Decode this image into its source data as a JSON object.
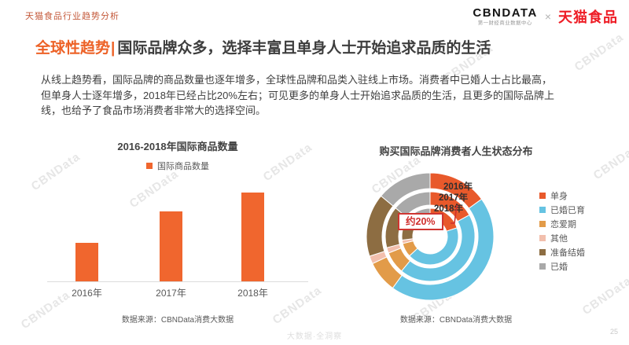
{
  "page": {
    "header_left": "天猫食品行业趋势分析",
    "logo": {
      "brand": "CBNDATA",
      "brand_sub": "第一财经商业数据中心",
      "separator": "×",
      "partner": "天猫食品"
    },
    "title": {
      "highlight": "全球性趋势",
      "separator": "|",
      "rest": "国际品牌众多，选择丰富且单身人士开始追求品质的生活"
    },
    "intro_lines": [
      "从线上趋势看，国际品牌的商品数量也逐年增多，全球性品牌和品类入驻线上市场。消费者中已婚人士占比最高，",
      "但单身人士逐年增多，2018年已经占比20%左右；可见更多的单身人士开始追求品质的生活，且更多的国际品牌上",
      "线，也给予了食品市场消费者非常大的选择空间。"
    ],
    "watermark": "CBNData",
    "footer_center": "大数据·全洞察",
    "page_number": "25"
  },
  "colors": {
    "accent_orange": "#ed6227",
    "brand_red": "#ee1c25",
    "text_dark": "#3d3d3d",
    "callout_red": "#cf2e2c",
    "axis_gray": "#dcdcdc"
  },
  "chart_data": [
    {
      "type": "bar",
      "title": "2016-2018年国际商品数量",
      "legend": [
        "国际商品数量"
      ],
      "categories": [
        "2016年",
        "2017年",
        "2018年"
      ],
      "values": [
        43,
        79,
        100
      ],
      "value_note": "no numeric axis or data labels shown; values are relative bar heights (2018 = 100)",
      "bar_color": "#f0662e",
      "grid": "off",
      "source": "数据来源：CBNData消费大数据"
    },
    {
      "type": "pie",
      "variant": "three-ring donut, outer→inner = 2016年→2018年",
      "title": "购买国际品牌消费者人生状态分布",
      "categories": [
        "单身",
        "已婚已育",
        "恋爱期",
        "其他",
        "准备结婚",
        "已婚"
      ],
      "colors": [
        "#e8592b",
        "#66c3e2",
        "#e29b49",
        "#f2bfad",
        "#8d6d42",
        "#a9a9a9"
      ],
      "rings": [
        {
          "label": "2016年",
          "values": [
            15,
            45,
            8,
            2,
            16,
            14
          ]
        },
        {
          "label": "2017年",
          "values": [
            17,
            44,
            8,
            2,
            15,
            14
          ]
        },
        {
          "label": "2018年",
          "values": [
            20,
            43,
            8,
            2,
            14,
            13
          ]
        }
      ],
      "annotation": {
        "text": "约20%",
        "target": "2018年 单身占比"
      },
      "legend_position": "right",
      "source": "数据来源：CBNData消费大数据"
    }
  ]
}
